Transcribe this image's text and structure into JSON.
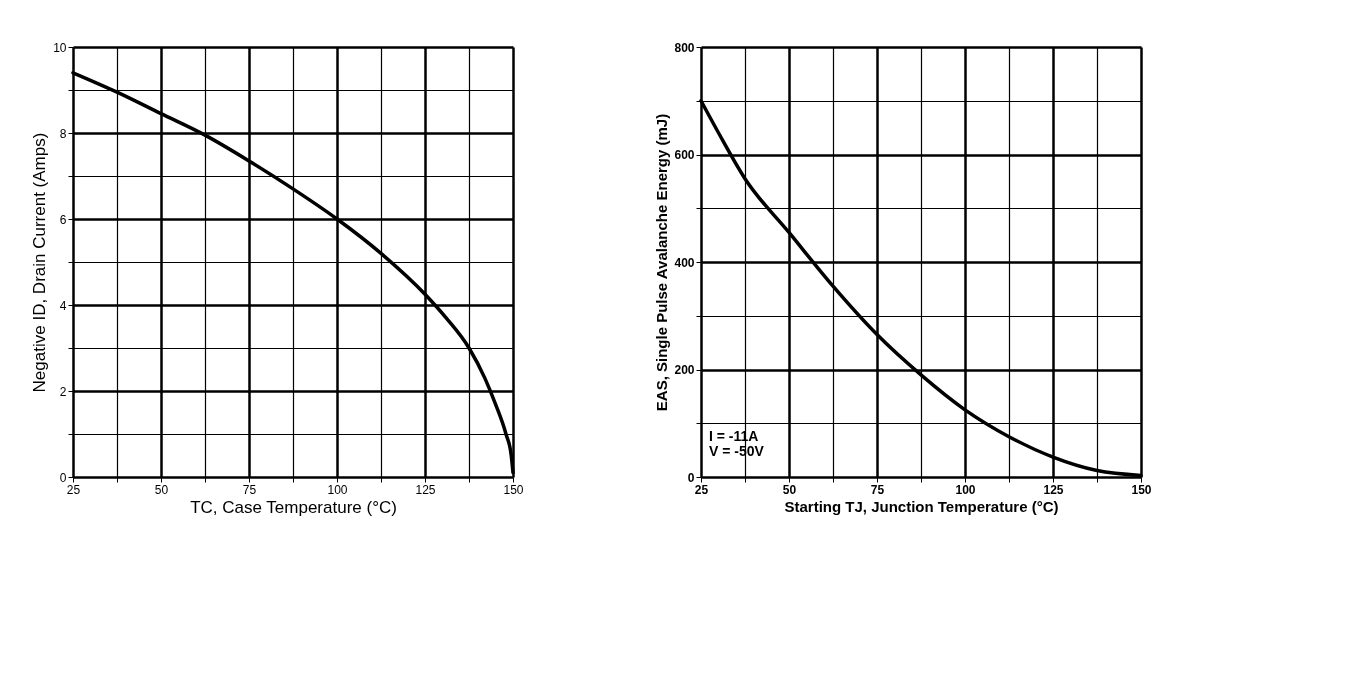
{
  "chart_data": [
    {
      "type": "line",
      "xlabel": "TC, Case Temperature (°C)",
      "ylabel": "Negative ID, Drain Current (Amps)",
      "grid": true,
      "marker": "none",
      "line_style": "solid",
      "xlim": [
        25,
        150
      ],
      "ylim": [
        0,
        10
      ],
      "xticks": [
        25,
        {
          "value": 37.5,
          "label": null
        },
        50,
        {
          "value": 62.5,
          "label": null
        },
        75,
        {
          "value": 87.5,
          "label": null
        },
        100,
        {
          "value": 112.5,
          "label": null
        },
        125,
        {
          "value": 137.5,
          "label": null
        },
        150
      ],
      "yticks": [
        0,
        {
          "value": 1,
          "label": null
        },
        2,
        {
          "value": 3,
          "label": null
        },
        4,
        {
          "value": 5,
          "label": null
        },
        6,
        {
          "value": 7,
          "label": null
        },
        8,
        {
          "value": 9,
          "label": null
        },
        10
      ],
      "x": [
        25,
        37.5,
        50,
        62.5,
        75,
        87.5,
        100,
        112.5,
        125,
        131,
        137.5,
        142,
        145,
        148,
        149.5,
        150
      ],
      "series": [
        {
          "color": "#000000",
          "values": [
            9.4,
            8.95,
            8.45,
            7.95,
            7.35,
            6.7,
            6.0,
            5.2,
            4.25,
            3.7,
            3.0,
            2.3,
            1.7,
            1.0,
            0.5,
            0.1
          ]
        }
      ]
    },
    {
      "type": "line",
      "xlabel": "Starting TJ, Junction Temperature (°C)",
      "ylabel": "EAS, Single Pulse Avalanche Energy (mJ)",
      "grid": true,
      "marker": "none",
      "line_style": "solid",
      "xlim": [
        25,
        150
      ],
      "ylim": [
        0,
        800
      ],
      "xticks": [
        25,
        {
          "value": 37.5,
          "label": null
        },
        50,
        {
          "value": 62.5,
          "label": null
        },
        75,
        {
          "value": 87.5,
          "label": null
        },
        100,
        {
          "value": 112.5,
          "label": null
        },
        125,
        {
          "value": 137.5,
          "label": null
        },
        150
      ],
      "yticks": [
        0,
        {
          "value": 100,
          "label": null
        },
        200,
        {
          "value": 300,
          "label": null
        },
        400,
        {
          "value": 500,
          "label": null
        },
        600,
        {
          "value": 700,
          "label": null
        },
        800
      ],
      "annotations": [
        "I = -11A",
        "V = -50V"
      ],
      "x": [
        25,
        30,
        37.5,
        50,
        62.5,
        75,
        87.5,
        100,
        112.5,
        125,
        137.5,
        150
      ],
      "series": [
        {
          "color": "#000000",
          "values": [
            700,
            640,
            555,
            455,
            355,
            265,
            190,
            125,
            75,
            37,
            12,
            3
          ]
        }
      ]
    }
  ]
}
